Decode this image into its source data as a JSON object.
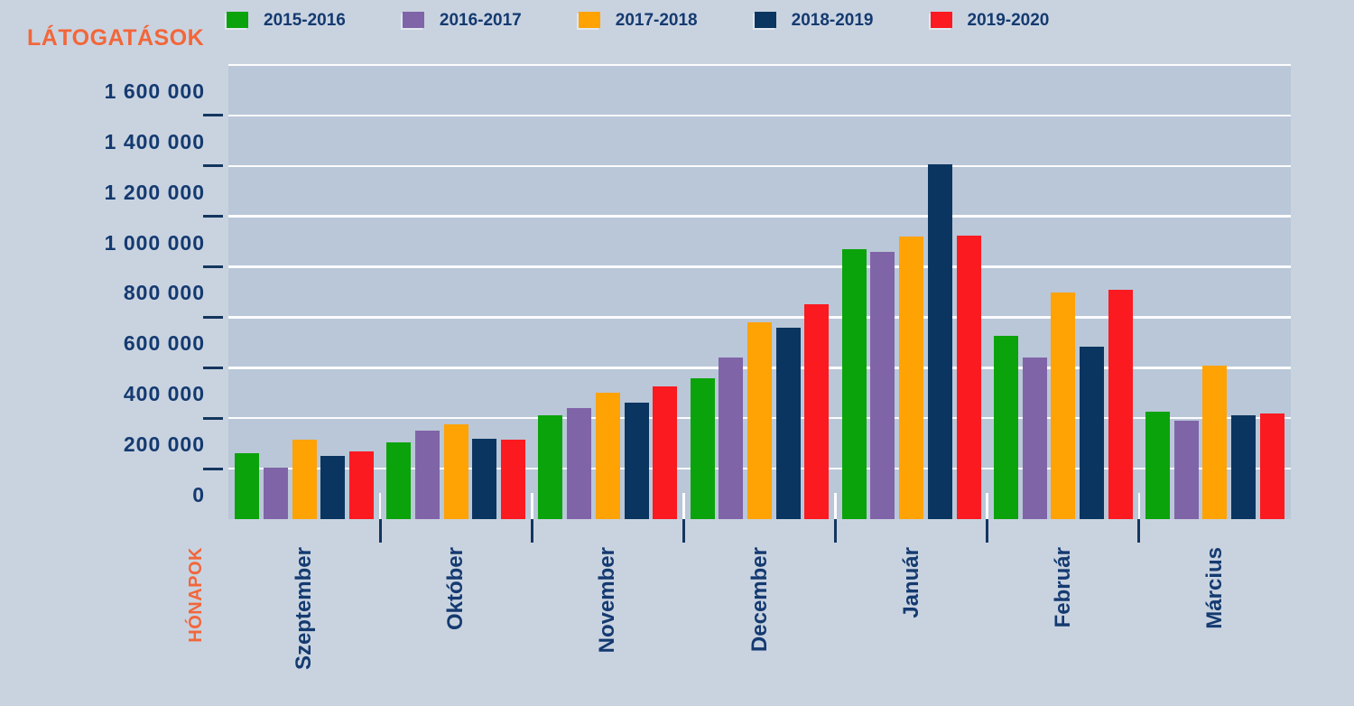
{
  "chart": {
    "y_axis_title": "LÁTOGATÁSOK",
    "x_axis_title": "HÓNAPOK"
  },
  "y_axis": {
    "labels": [
      "0",
      "200 000",
      "400 000",
      "600 000",
      "800 000",
      "1 000 000",
      "1 200 000",
      "1 400 000",
      "1 600 000"
    ]
  },
  "chart_data": {
    "type": "bar",
    "title": "",
    "ylabel": "LÁTOGATÁSOK",
    "xlabel": "HÓNAPOK",
    "categories": [
      "Szeptember",
      "Október",
      "November",
      "December",
      "Január",
      "Február",
      "Március"
    ],
    "series": [
      {
        "name": "2015-2016",
        "color": "#0BA30B",
        "values": [
          260000,
          305000,
          410000,
          560000,
          1070000,
          725000,
          425000
        ]
      },
      {
        "name": "2016-2017",
        "color": "#8064A8",
        "values": [
          205000,
          350000,
          440000,
          640000,
          1060000,
          640000,
          390000
        ]
      },
      {
        "name": "2017-2018",
        "color": "#FFA203",
        "values": [
          315000,
          375000,
          500000,
          780000,
          1120000,
          900000,
          610000
        ]
      },
      {
        "name": "2018-2019",
        "color": "#0A3560",
        "values": [
          250000,
          320000,
          460000,
          760000,
          1405000,
          685000,
          410000
        ]
      },
      {
        "name": "2019-2020",
        "color": "#FA1A20",
        "values": [
          270000,
          315000,
          525000,
          850000,
          1125000,
          910000,
          420000
        ]
      }
    ],
    "ylim": [
      0,
      1800000
    ],
    "y_tick_step": 200000,
    "grid": true,
    "legend_position": "top"
  },
  "colors": {
    "background": "#C9D3E0",
    "plot_background": "#B9C7D8",
    "gridline": "#FFFFFF",
    "text_navy": "#143A70",
    "tick_navy": "#14365E",
    "accent_orange": "#F2663A"
  }
}
